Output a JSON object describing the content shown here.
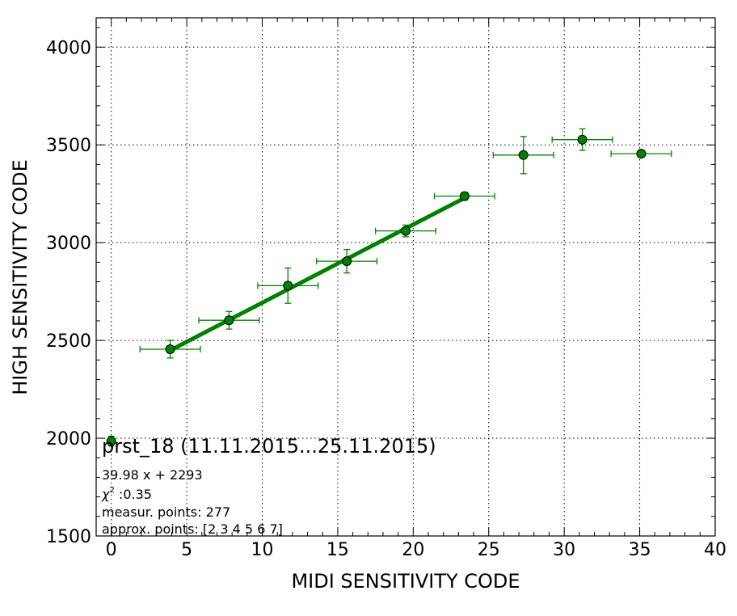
{
  "chart_data": {
    "type": "scatter",
    "xlabel": "MIDI SENSITIVITY CODE",
    "ylabel": "HIGH SENSITIVITY CODE",
    "xlim": [
      -1,
      40
    ],
    "ylim": [
      1500,
      4150
    ],
    "xticks": [
      0,
      5,
      10,
      15,
      20,
      25,
      30,
      35,
      40
    ],
    "yticks": [
      1500,
      2000,
      2500,
      3000,
      3500,
      4000
    ],
    "grid": true,
    "marker_color": "#008000",
    "marker_edge": "#000000",
    "fit_color": "#008000",
    "points": [
      {
        "x": 0.0,
        "y": 1985,
        "xerr": 0.0,
        "yerr": 25
      },
      {
        "x": 3.9,
        "y": 2455,
        "xerr": 2.0,
        "yerr": 45
      },
      {
        "x": 7.8,
        "y": 2603,
        "xerr": 2.0,
        "yerr": 45
      },
      {
        "x": 11.7,
        "y": 2780,
        "xerr": 2.0,
        "yerr": 90
      },
      {
        "x": 15.6,
        "y": 2905,
        "xerr": 2.0,
        "yerr": 60
      },
      {
        "x": 19.5,
        "y": 3060,
        "xerr": 2.0,
        "yerr": 30
      },
      {
        "x": 23.4,
        "y": 3238,
        "xerr": 2.0,
        "yerr": 20
      },
      {
        "x": 27.3,
        "y": 3448,
        "xerr": 2.0,
        "yerr": 95
      },
      {
        "x": 31.2,
        "y": 3527,
        "xerr": 2.0,
        "yerr": 55
      },
      {
        "x": 35.1,
        "y": 3455,
        "xerr": 2.0,
        "yerr": 0
      }
    ],
    "fit": {
      "slope": 39.98,
      "intercept": 2293,
      "x_range": [
        3.9,
        23.4
      ]
    },
    "annotation": {
      "title": "prst_18 (11.11.2015...25.11.2015)",
      "equation": "39.98 x + 2293",
      "chi_symbol": "χ",
      "chi_sup": "2",
      "chi_value": " :0.35",
      "measur_points": "measur. points: 277",
      "approx_points": "approx. points: [2 3 4 5 6 7]"
    }
  }
}
